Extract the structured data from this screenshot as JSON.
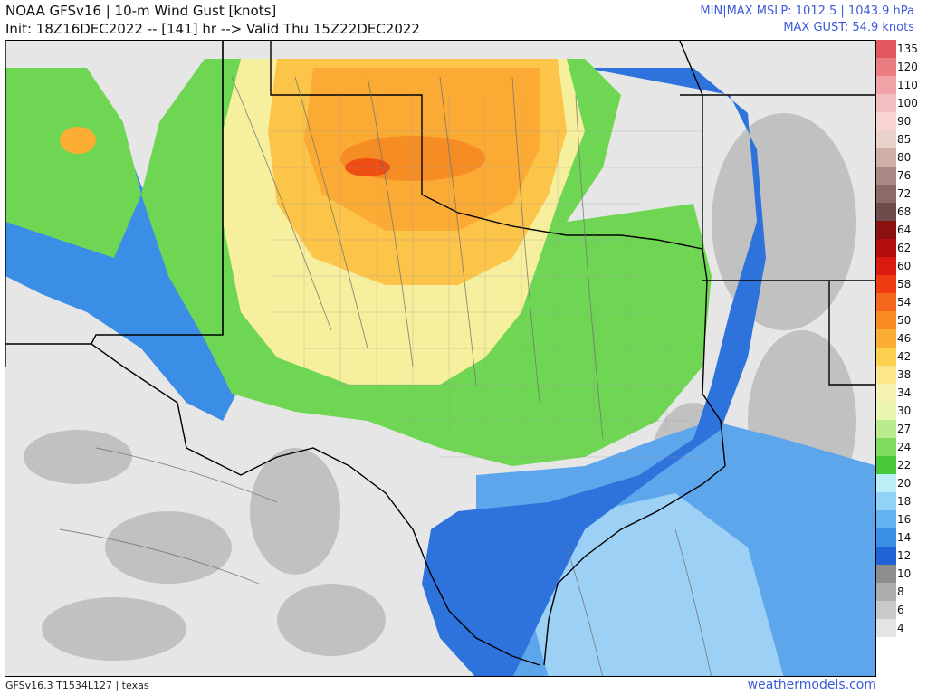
{
  "header": {
    "title": "NOAA GFSv16 | 10-m Wind Gust [knots]",
    "init_line": "Init: 18Z16DEC2022 -- [141] hr --> Valid Thu 15Z22DEC2022",
    "mslp_line": "MIN|MAX MSLP: 1012.5 | 1043.9 hPa",
    "gust_line": "MAX GUST: 54.9 knots"
  },
  "colorbar": {
    "levels": [
      "135",
      "120",
      "110",
      "100",
      "90",
      "85",
      "80",
      "76",
      "72",
      "68",
      "64",
      "62",
      "60",
      "58",
      "54",
      "50",
      "46",
      "42",
      "38",
      "34",
      "30",
      "27",
      "24",
      "22",
      "20",
      "18",
      "16",
      "14",
      "12",
      "10",
      "8",
      "6",
      "4"
    ],
    "colors": [
      "#e3575e",
      "#ea7d82",
      "#f0a2a6",
      "#f4bdbf",
      "#f7d3d3",
      "#ead2cb",
      "#cfb0a8",
      "#a98a84",
      "#8c6a67",
      "#6e4c4b",
      "#8b1010",
      "#b40d0d",
      "#d81a10",
      "#ef3b12",
      "#f5671d",
      "#f98c20",
      "#fbae33",
      "#fdd050",
      "#fde58a",
      "#f6f2b4",
      "#eaf5b0",
      "#b9eb8c",
      "#7fdc5e",
      "#47c83a",
      "#bdeef8",
      "#92d2f6",
      "#64b3f0",
      "#3a8ee6",
      "#1f63d6",
      "#8d8d8d",
      "#acacac",
      "#c9c9c9",
      "#e4e4e4"
    ]
  },
  "footer": {
    "model_id": "GFSv16.3 T1534L127 | texas",
    "site": "weathermodels.com"
  }
}
